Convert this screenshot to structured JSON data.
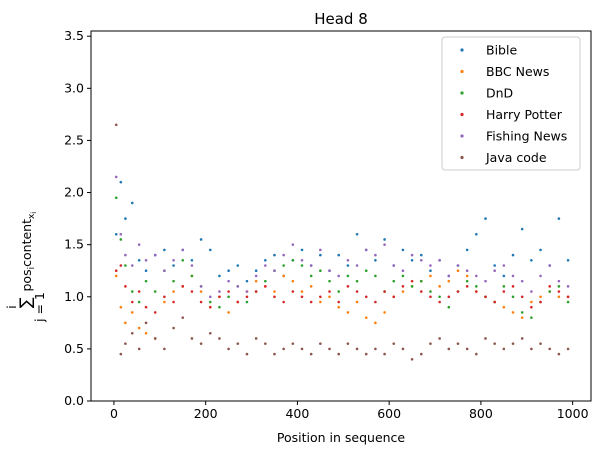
{
  "chart_data": {
    "type": "scatter",
    "title": "Head 8",
    "xlabel": "Position in sequence",
    "ylabel": "∑ pos_i content_{x_i}, j=1..i",
    "xlim": [
      -50,
      1040
    ],
    "ylim": [
      0.0,
      3.55
    ],
    "xticks": [
      0,
      200,
      400,
      600,
      800,
      1000
    ],
    "yticks": [
      0.0,
      0.5,
      1.0,
      1.5,
      2.0,
      2.5,
      3.0,
      3.5
    ],
    "grid": false,
    "legend_position": "top-right",
    "series": [
      {
        "name": "Bible",
        "color": "#1f77b4",
        "x": [
          5,
          15,
          25,
          40,
          55,
          70,
          90,
          110,
          130,
          150,
          170,
          190,
          210,
          230,
          250,
          270,
          290,
          310,
          330,
          350,
          370,
          390,
          410,
          430,
          450,
          470,
          490,
          510,
          530,
          550,
          570,
          590,
          610,
          630,
          650,
          670,
          690,
          710,
          730,
          750,
          770,
          790,
          810,
          830,
          850,
          870,
          890,
          910,
          930,
          950,
          970,
          990
        ],
        "y": [
          1.6,
          2.1,
          1.75,
          1.9,
          1.35,
          1.25,
          1.4,
          1.45,
          1.3,
          1.45,
          1.35,
          1.55,
          1.45,
          1.2,
          1.25,
          1.3,
          1.15,
          1.25,
          1.35,
          1.4,
          1.2,
          1.35,
          1.45,
          1.3,
          1.4,
          1.25,
          1.4,
          1.3,
          1.6,
          1.45,
          1.35,
          1.55,
          1.3,
          1.45,
          1.35,
          1.4,
          1.25,
          1.35,
          1.2,
          1.3,
          1.45,
          1.6,
          1.75,
          1.3,
          1.2,
          1.4,
          1.65,
          1.35,
          1.45,
          1.3,
          1.75,
          1.35
        ]
      },
      {
        "name": "BBC News",
        "color": "#ff7f0e",
        "x": [
          5,
          15,
          25,
          40,
          55,
          70,
          90,
          110,
          130,
          150,
          170,
          190,
          210,
          230,
          250,
          270,
          290,
          310,
          330,
          350,
          370,
          390,
          410,
          430,
          450,
          470,
          490,
          510,
          530,
          550,
          570,
          590,
          610,
          630,
          650,
          670,
          690,
          710,
          730,
          750,
          770,
          790,
          810,
          830,
          850,
          870,
          890,
          910,
          930,
          950,
          970,
          990
        ],
        "y": [
          1.2,
          0.9,
          0.75,
          0.85,
          0.7,
          0.65,
          0.6,
          0.95,
          1.05,
          1.1,
          1.2,
          1.05,
          0.9,
          1.0,
          0.85,
          0.95,
          1.05,
          1.15,
          1.1,
          1.05,
          1.2,
          1.15,
          1.05,
          1.1,
          0.95,
          1.0,
          0.9,
          0.85,
          0.95,
          0.8,
          0.75,
          0.85,
          1.0,
          1.05,
          1.1,
          1.15,
          1.2,
          1.1,
          1.15,
          1.25,
          1.2,
          1.05,
          1.0,
          0.95,
          0.9,
          0.85,
          0.8,
          0.95,
          1.0,
          1.05,
          1.0,
          1.0
        ]
      },
      {
        "name": "DnD",
        "color": "#2ca02c",
        "x": [
          5,
          15,
          25,
          40,
          55,
          70,
          90,
          110,
          130,
          150,
          170,
          190,
          210,
          230,
          250,
          270,
          290,
          310,
          330,
          350,
          370,
          390,
          410,
          430,
          450,
          470,
          490,
          510,
          530,
          550,
          570,
          590,
          610,
          630,
          650,
          670,
          690,
          710,
          730,
          750,
          770,
          790,
          810,
          830,
          850,
          870,
          890,
          910,
          930,
          950,
          970,
          990
        ],
        "y": [
          1.95,
          1.55,
          1.3,
          1.05,
          0.95,
          1.15,
          1.05,
          1.25,
          1.15,
          1.35,
          1.2,
          1.1,
          0.95,
          0.9,
          1.0,
          1.1,
          0.95,
          1.05,
          1.15,
          1.25,
          1.3,
          1.35,
          1.3,
          1.2,
          1.25,
          1.15,
          1.05,
          1.2,
          1.15,
          1.25,
          1.2,
          1.05,
          1.15,
          1.2,
          1.1,
          1.15,
          1.05,
          1.0,
          0.9,
          1.05,
          1.15,
          1.1,
          1.0,
          0.95,
          1.1,
          1.0,
          0.85,
          0.8,
          0.95,
          1.05,
          1.1,
          0.95
        ]
      },
      {
        "name": "Harry Potter",
        "color": "#d62728",
        "x": [
          5,
          15,
          25,
          40,
          55,
          70,
          90,
          110,
          130,
          150,
          170,
          190,
          210,
          230,
          250,
          270,
          290,
          310,
          330,
          350,
          370,
          390,
          410,
          430,
          450,
          470,
          490,
          510,
          530,
          550,
          570,
          590,
          610,
          630,
          650,
          670,
          690,
          710,
          730,
          750,
          770,
          790,
          810,
          830,
          850,
          870,
          890,
          910,
          930,
          950,
          970,
          990
        ],
        "y": [
          1.25,
          1.3,
          1.1,
          0.95,
          1.05,
          0.9,
          0.85,
          1.0,
          0.95,
          1.1,
          1.05,
          0.95,
          0.9,
          1.0,
          1.05,
          0.95,
          1.0,
          1.05,
          1.1,
          1.0,
          0.95,
          1.05,
          1.0,
          0.95,
          1.0,
          1.05,
          0.95,
          1.1,
          1.05,
          1.0,
          0.95,
          1.05,
          1.0,
          1.1,
          1.15,
          1.05,
          1.0,
          0.95,
          1.0,
          1.05,
          1.1,
          1.05,
          1.0,
          0.95,
          1.05,
          1.1,
          1.0,
          0.9,
          0.95,
          1.1,
          1.05,
          1.0
        ]
      },
      {
        "name": "Fishing News",
        "color": "#9467bd",
        "x": [
          5,
          15,
          25,
          40,
          55,
          70,
          90,
          110,
          130,
          150,
          170,
          190,
          210,
          230,
          250,
          270,
          290,
          310,
          330,
          350,
          370,
          390,
          410,
          430,
          450,
          470,
          490,
          510,
          530,
          550,
          570,
          590,
          610,
          630,
          650,
          670,
          690,
          710,
          730,
          750,
          770,
          790,
          810,
          830,
          850,
          870,
          890,
          910,
          930,
          950,
          970,
          990
        ],
        "y": [
          2.15,
          1.6,
          1.4,
          1.3,
          1.5,
          1.35,
          1.4,
          1.25,
          1.35,
          1.45,
          1.3,
          1.1,
          1.0,
          1.05,
          1.15,
          1.1,
          1.05,
          1.2,
          1.3,
          1.25,
          1.4,
          1.5,
          1.35,
          1.3,
          1.45,
          1.25,
          1.2,
          1.35,
          1.3,
          1.45,
          1.4,
          1.5,
          1.3,
          1.25,
          1.4,
          1.35,
          1.3,
          1.35,
          1.2,
          1.3,
          1.25,
          1.2,
          1.15,
          1.25,
          1.3,
          1.2,
          1.15,
          1.05,
          1.2,
          1.3,
          1.15,
          1.1
        ]
      },
      {
        "name": "Java code",
        "color": "#8c564b",
        "x": [
          5,
          15,
          25,
          40,
          55,
          70,
          90,
          110,
          130,
          150,
          170,
          190,
          210,
          230,
          250,
          270,
          290,
          310,
          330,
          350,
          370,
          390,
          410,
          430,
          450,
          470,
          490,
          510,
          530,
          550,
          570,
          590,
          610,
          630,
          650,
          670,
          690,
          710,
          730,
          750,
          770,
          790,
          810,
          830,
          850,
          870,
          890,
          910,
          930,
          950,
          970,
          990
        ],
        "y": [
          2.65,
          0.45,
          0.55,
          0.65,
          0.5,
          0.75,
          0.6,
          0.5,
          0.7,
          0.8,
          0.6,
          0.55,
          0.65,
          0.6,
          0.5,
          0.55,
          0.45,
          0.6,
          0.55,
          0.45,
          0.5,
          0.55,
          0.5,
          0.45,
          0.55,
          0.5,
          0.45,
          0.55,
          0.5,
          0.45,
          0.5,
          0.45,
          0.55,
          0.5,
          0.4,
          0.45,
          0.55,
          0.6,
          0.5,
          0.55,
          0.5,
          0.45,
          0.6,
          0.55,
          0.5,
          0.55,
          0.6,
          0.5,
          0.55,
          0.5,
          0.45,
          0.5
        ]
      }
    ]
  }
}
